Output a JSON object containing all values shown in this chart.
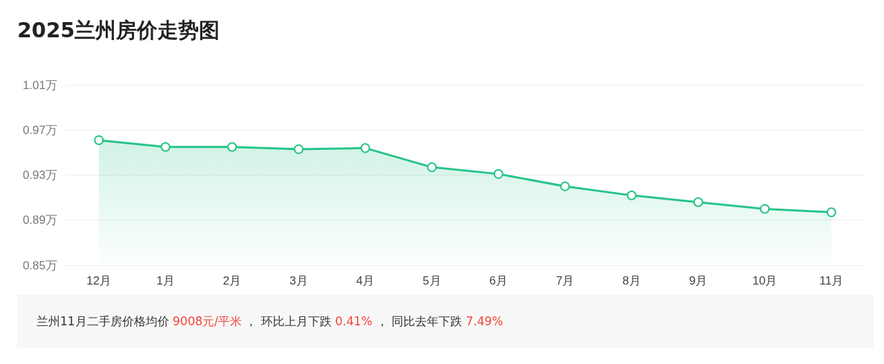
{
  "chart_data": {
    "type": "area",
    "title": "2025兰州房价走势图",
    "categories": [
      "12月",
      "1月",
      "2月",
      "3月",
      "4月",
      "5月",
      "6月",
      "7月",
      "8月",
      "9月",
      "10月",
      "11月"
    ],
    "values": [
      0.961,
      0.955,
      0.955,
      0.953,
      0.954,
      0.937,
      0.931,
      0.92,
      0.912,
      0.906,
      0.9,
      0.897
    ],
    "color": "#26c488",
    "ylim": [
      0.85,
      1.01
    ],
    "yticks": [
      {
        "value": 0.85,
        "label": "0.85万"
      },
      {
        "value": 0.89,
        "label": "0.89万"
      },
      {
        "value": 0.93,
        "label": "0.93万"
      },
      {
        "value": 0.97,
        "label": "0.97万"
      },
      {
        "value": 1.01,
        "label": "1.01万"
      }
    ],
    "grid": "y",
    "marker": "circle",
    "line_style": "solid",
    "annotations": [
      "兰州11月二手房价格均价 ",
      "9008元/平米",
      " ， 环比上月下跌 ",
      "0.41%",
      " ， 同比去年下跌 ",
      "7.49%"
    ]
  }
}
